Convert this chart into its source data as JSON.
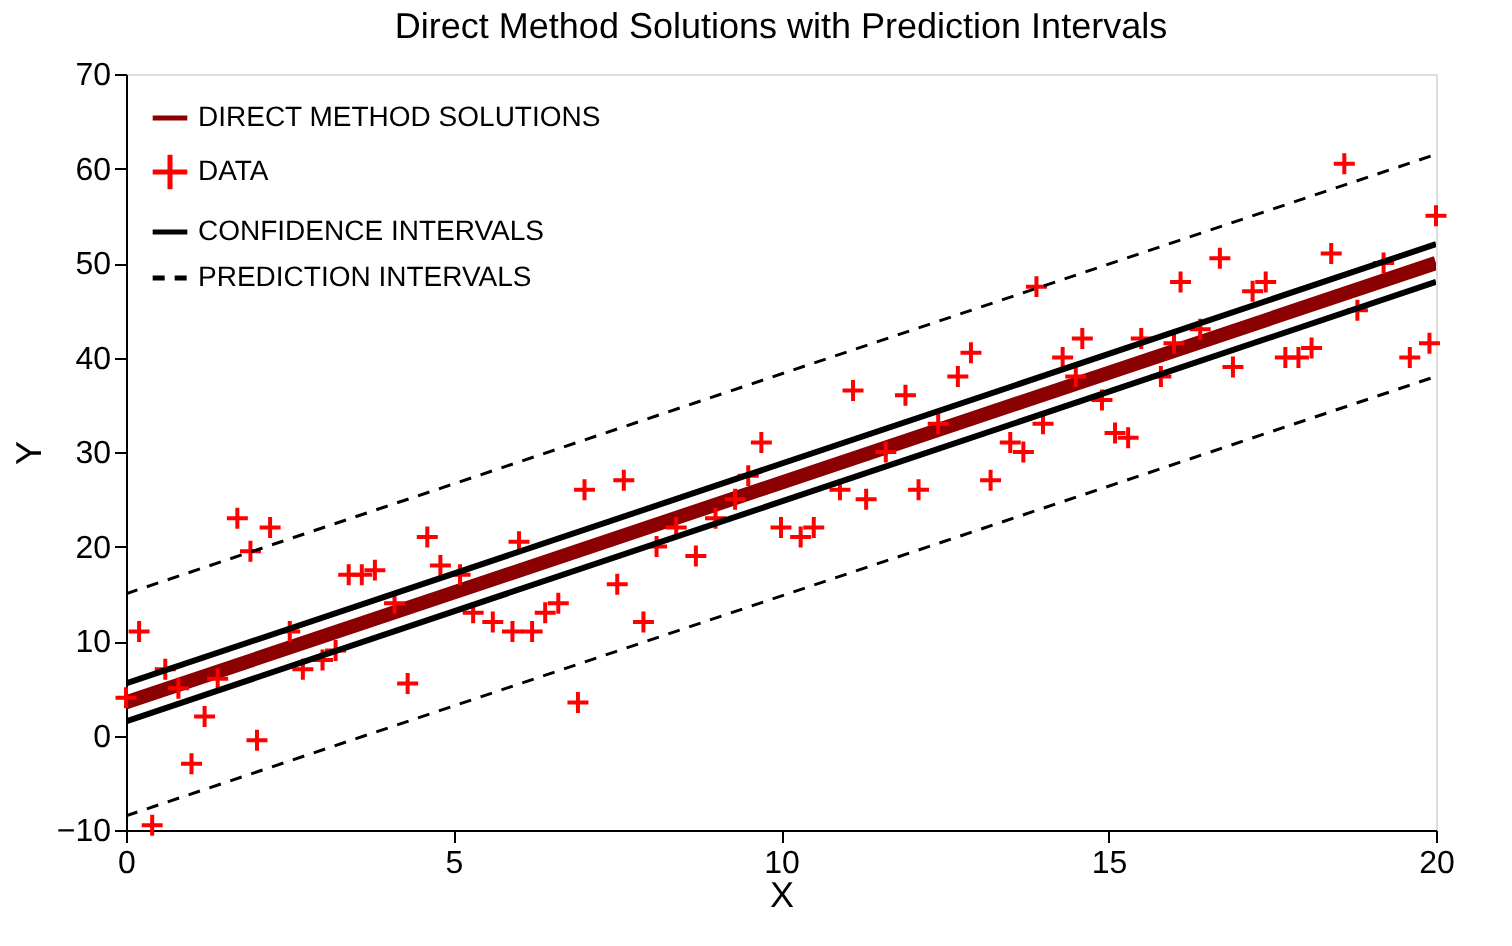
{
  "chart_data": {
    "type": "scatter",
    "title": "Direct Method Solutions with Prediction Intervals",
    "xlabel": "X",
    "ylabel": "Y",
    "xlim": [
      0,
      20
    ],
    "xticks": [
      0,
      5,
      10,
      15,
      20
    ],
    "ylim": [
      -10,
      70
    ],
    "yticks": [
      -10,
      0,
      10,
      20,
      30,
      40,
      50,
      60,
      70
    ],
    "grid": false,
    "legend": "top left",
    "series": [
      {
        "name": "DIRECT METHOD SOLUTIONS",
        "type": "line",
        "color": "#8b0000",
        "line_style": "solid",
        "x": [
          0,
          20
        ],
        "values": [
          3.5,
          50
        ]
      },
      {
        "name": "DATA",
        "color": "#ff0000",
        "marker": "cross",
        "x": [
          0.0,
          0.2,
          0.4,
          0.6,
          0.8,
          1.0,
          1.2,
          1.4,
          1.7,
          1.9,
          2.0,
          2.2,
          2.5,
          2.7,
          3.0,
          3.2,
          3.4,
          3.6,
          3.8,
          4.1,
          4.3,
          4.6,
          4.8,
          5.1,
          5.3,
          5.6,
          5.9,
          6.0,
          6.2,
          6.4,
          6.6,
          6.9,
          7.0,
          7.5,
          7.6,
          7.9,
          8.1,
          8.4,
          8.7,
          9.0,
          9.3,
          9.5,
          9.7,
          10.0,
          10.3,
          10.5,
          10.9,
          11.1,
          11.3,
          11.6,
          11.9,
          12.1,
          12.4,
          12.7,
          12.9,
          13.2,
          13.5,
          13.7,
          13.9,
          14.0,
          14.3,
          14.5,
          14.6,
          14.9,
          15.1,
          15.3,
          15.5,
          15.8,
          16.0,
          16.1,
          16.4,
          16.7,
          16.9,
          17.2,
          17.4,
          17.7,
          17.9,
          18.1,
          18.4,
          18.6,
          18.8,
          19.2,
          19.6,
          19.9,
          20.0
        ],
        "values": [
          4,
          11,
          -9.5,
          7,
          5,
          -3,
          2,
          6,
          23,
          19.5,
          -0.5,
          22,
          11,
          7,
          8,
          9,
          17,
          17,
          17.5,
          14,
          5.5,
          21,
          18,
          17,
          13,
          12,
          11,
          20.5,
          11,
          13,
          14,
          3.5,
          26,
          16,
          27,
          12,
          20,
          22,
          19,
          23,
          25,
          27.5,
          31,
          22,
          21,
          22,
          26,
          36.5,
          25,
          30,
          36,
          26,
          33,
          38,
          40.5,
          27,
          31,
          30,
          47.5,
          33,
          40,
          38,
          42,
          35.5,
          32,
          31.5,
          42,
          38,
          41.5,
          48,
          43,
          50.5,
          39,
          47,
          48,
          40,
          40,
          41,
          51,
          60.5,
          45,
          50,
          40,
          41.5,
          55
        ]
      },
      {
        "name": "CONFIDENCE INTERVALS",
        "type": "line",
        "color": "#000000",
        "line_style": "solid",
        "x": [
          0,
          20
        ],
        "values": [
          5.5,
          52
        ]
      },
      {
        "type": "line",
        "color": "#000000",
        "line_style": "solid",
        "x": [
          0,
          20
        ],
        "values": [
          1.5,
          48
        ]
      },
      {
        "name": "PREDICTION INTERVALS",
        "type": "line",
        "color": "#000000",
        "line_style": "dashed",
        "x": [
          0,
          20
        ],
        "values": [
          15,
          61.5
        ]
      },
      {
        "type": "line",
        "color": "#000000",
        "line_style": "dashed",
        "x": [
          0,
          20
        ],
        "values": [
          -8.5,
          38
        ]
      }
    ]
  }
}
